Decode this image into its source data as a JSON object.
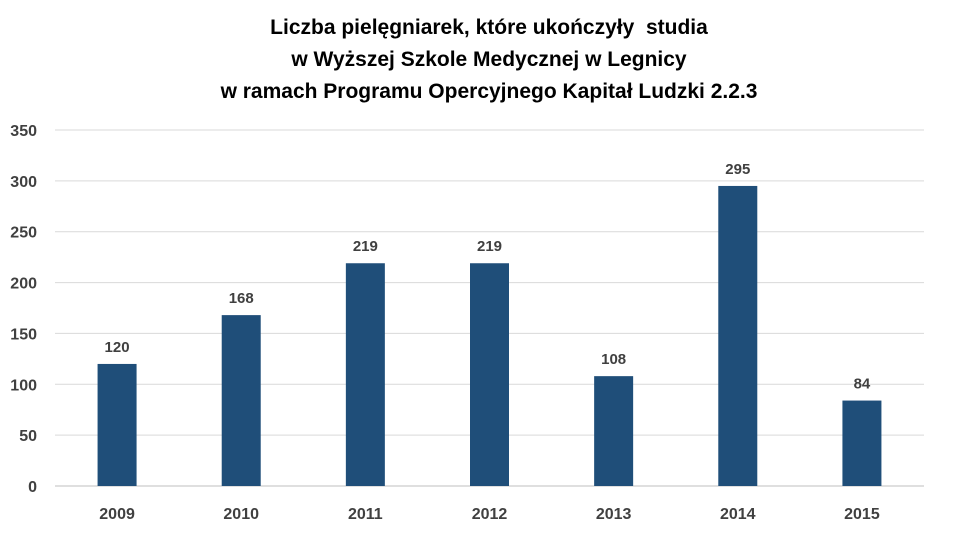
{
  "chart_data": {
    "type": "bar",
    "title_lines": [
      "Liczba pielęgniarek, które ukończyły  studia",
      "w Wyższej Szkole Medycznej w Legnicy",
      "w ramach Programu Opercyjnego Kapitał Ludzki 2.2.3"
    ],
    "categories": [
      "2009",
      "2010",
      "2011",
      "2012",
      "2013",
      "2014",
      "2015"
    ],
    "values": [
      120,
      168,
      219,
      219,
      108,
      295,
      84
    ],
    "data_labels": [
      "120",
      "168",
      "219",
      "219",
      "108",
      "295",
      "84"
    ],
    "ylim": [
      0,
      350
    ],
    "yticks": [
      "0",
      "50",
      "100",
      "150",
      "200",
      "250",
      "300",
      "350"
    ],
    "grid": true,
    "legend": "none",
    "bar_color": "#1f4e79",
    "xlabel": "",
    "ylabel": ""
  }
}
